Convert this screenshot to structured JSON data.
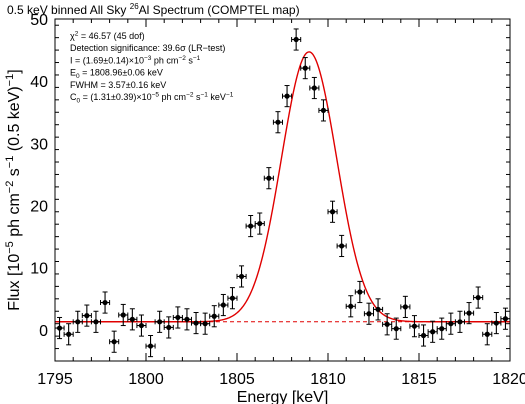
{
  "chart_data": {
    "type": "scatter",
    "title": {
      "prefix": "0.5 keV binned All Sky ",
      "isotope_mass": "26",
      "suffix": "Al Spectrum (COMPTEL map)"
    },
    "xlabel": "Energy [keV]",
    "ylabel": {
      "prefix": "Flux [10",
      "exp1": "−5",
      "mid1": " ph cm",
      "exp2": "−2",
      "mid2": " s",
      "exp3": "−1",
      "mid3": " (0.5 keV)",
      "exp4": "−1",
      "end": "]"
    },
    "xlim": [
      1795,
      1820
    ],
    "ylim": [
      -5,
      50
    ],
    "xticks": [
      1795,
      1800,
      1805,
      1810,
      1815,
      1820
    ],
    "yticks": [
      0,
      10,
      20,
      30,
      40,
      50
    ],
    "x_error": 0.25,
    "points": [
      {
        "x": 1795.25,
        "y": 0.3,
        "err": 1.7
      },
      {
        "x": 1795.75,
        "y": -0.7,
        "err": 1.7
      },
      {
        "x": 1796.25,
        "y": 1.3,
        "err": 1.7
      },
      {
        "x": 1796.75,
        "y": 2.3,
        "err": 1.7
      },
      {
        "x": 1797.25,
        "y": 1.3,
        "err": 1.7
      },
      {
        "x": 1797.75,
        "y": 4.4,
        "err": 1.7
      },
      {
        "x": 1798.25,
        "y": -1.9,
        "err": 1.7
      },
      {
        "x": 1798.75,
        "y": 2.4,
        "err": 1.7
      },
      {
        "x": 1799.25,
        "y": 1.7,
        "err": 1.7
      },
      {
        "x": 1799.75,
        "y": 0.7,
        "err": 1.7
      },
      {
        "x": 1800.25,
        "y": -2.6,
        "err": 1.7
      },
      {
        "x": 1800.75,
        "y": 1.3,
        "err": 1.7
      },
      {
        "x": 1801.25,
        "y": 0.4,
        "err": 1.7
      },
      {
        "x": 1801.75,
        "y": 2.0,
        "err": 1.7
      },
      {
        "x": 1802.25,
        "y": 1.7,
        "err": 1.7
      },
      {
        "x": 1802.75,
        "y": 1.1,
        "err": 1.7
      },
      {
        "x": 1803.25,
        "y": 1.0,
        "err": 1.7
      },
      {
        "x": 1803.75,
        "y": 2.2,
        "err": 1.7
      },
      {
        "x": 1804.25,
        "y": 4.0,
        "err": 1.7
      },
      {
        "x": 1804.75,
        "y": 5.1,
        "err": 1.7
      },
      {
        "x": 1805.25,
        "y": 8.6,
        "err": 1.7
      },
      {
        "x": 1805.75,
        "y": 16.7,
        "err": 1.7
      },
      {
        "x": 1806.25,
        "y": 17.1,
        "err": 1.7
      },
      {
        "x": 1806.75,
        "y": 24.4,
        "err": 1.7
      },
      {
        "x": 1807.25,
        "y": 33.4,
        "err": 1.7
      },
      {
        "x": 1807.75,
        "y": 37.6,
        "err": 1.7
      },
      {
        "x": 1808.25,
        "y": 46.7,
        "err": 1.7
      },
      {
        "x": 1808.75,
        "y": 42.1,
        "err": 1.7
      },
      {
        "x": 1809.25,
        "y": 38.9,
        "err": 1.7
      },
      {
        "x": 1809.75,
        "y": 35.3,
        "err": 1.7
      },
      {
        "x": 1810.25,
        "y": 19.0,
        "err": 1.7
      },
      {
        "x": 1810.75,
        "y": 13.5,
        "err": 1.7
      },
      {
        "x": 1811.25,
        "y": 3.8,
        "err": 1.7
      },
      {
        "x": 1811.75,
        "y": 6.1,
        "err": 1.7
      },
      {
        "x": 1812.25,
        "y": 2.6,
        "err": 1.7
      },
      {
        "x": 1812.75,
        "y": 3.3,
        "err": 1.7
      },
      {
        "x": 1813.25,
        "y": 0.9,
        "err": 1.7
      },
      {
        "x": 1813.75,
        "y": 0.2,
        "err": 1.7
      },
      {
        "x": 1814.25,
        "y": 3.7,
        "err": 1.7
      },
      {
        "x": 1814.75,
        "y": 0.6,
        "err": 1.7
      },
      {
        "x": 1815.25,
        "y": -0.9,
        "err": 1.7
      },
      {
        "x": 1815.75,
        "y": -0.3,
        "err": 1.7
      },
      {
        "x": 1816.25,
        "y": 0.2,
        "err": 1.7
      },
      {
        "x": 1816.75,
        "y": 1.0,
        "err": 1.7
      },
      {
        "x": 1817.25,
        "y": 1.3,
        "err": 1.7
      },
      {
        "x": 1817.75,
        "y": 2.7,
        "err": 1.7
      },
      {
        "x": 1818.25,
        "y": 5.2,
        "err": 1.7
      },
      {
        "x": 1818.75,
        "y": -0.7,
        "err": 1.7
      },
      {
        "x": 1819.25,
        "y": 1.1,
        "err": 1.7
      },
      {
        "x": 1819.75,
        "y": 1.8,
        "err": 1.7
      }
    ],
    "fit": {
      "continuum": 1.31,
      "centroid": 1808.96,
      "fwhm": 3.57,
      "peak_height": 43.4
    },
    "annotations": [
      {
        "id": "chi2",
        "parts": [
          [
            "",
            "χ"
          ],
          [
            "sup",
            "2"
          ],
          [
            "",
            " = 46.57 (45 dof)"
          ]
        ]
      },
      {
        "id": "significance",
        "parts": [
          [
            "",
            "Detection significance: 39.6σ (LR−test)"
          ]
        ]
      },
      {
        "id": "intensity",
        "parts": [
          [
            "",
            "I = (1.69±0.14)×10"
          ],
          [
            "sup",
            "−3"
          ],
          [
            "",
            " ph cm"
          ],
          [
            "sup",
            "−2"
          ],
          [
            "",
            " s"
          ],
          [
            "sup",
            "−1"
          ]
        ]
      },
      {
        "id": "energy",
        "parts": [
          [
            "",
            "E"
          ],
          [
            "sub",
            "0"
          ],
          [
            "",
            " = 1808.96±0.06 keV"
          ]
        ]
      },
      {
        "id": "fwhm",
        "parts": [
          [
            "",
            "FWHM = 3.57±0.16 keV"
          ]
        ]
      },
      {
        "id": "continuum",
        "parts": [
          [
            "",
            "C"
          ],
          [
            "sub",
            "0"
          ],
          [
            "",
            " = (1.31±0.39)×10"
          ],
          [
            "sup",
            "−5"
          ],
          [
            "",
            " ph cm"
          ],
          [
            "sup",
            "−2"
          ],
          [
            "",
            " s"
          ],
          [
            "sup",
            "−1"
          ],
          [
            "",
            " keV"
          ],
          [
            "sup",
            "−1"
          ]
        ]
      }
    ],
    "colors": {
      "fit": "#e00000",
      "points": "#000000"
    },
    "grid": false,
    "legend": "none"
  }
}
